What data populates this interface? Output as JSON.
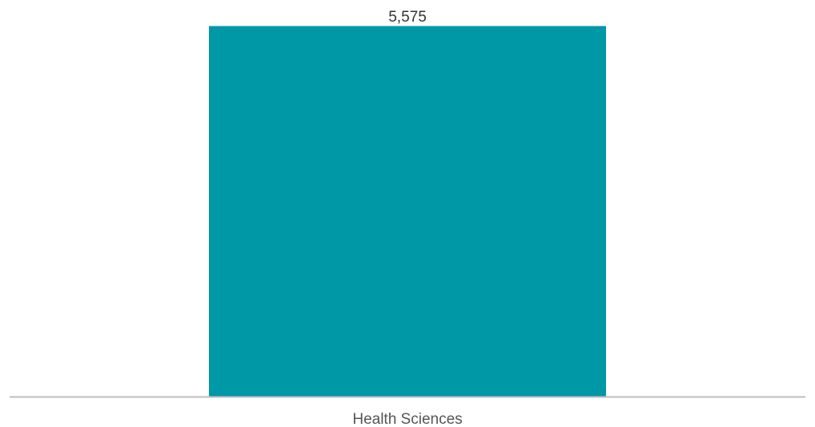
{
  "colors": {
    "bar_fill": "#0097a7",
    "bar_edge": "#009aa6",
    "baseline": "#bdbdbd",
    "value_text": "#333333",
    "category_text": "#555555"
  },
  "chart_data": {
    "type": "bar",
    "categories": [
      "Health Sciences"
    ],
    "values": [
      5575
    ],
    "value_labels": [
      "5,575"
    ],
    "ylim": [
      0,
      5575
    ],
    "grid": false,
    "legend": "none"
  }
}
